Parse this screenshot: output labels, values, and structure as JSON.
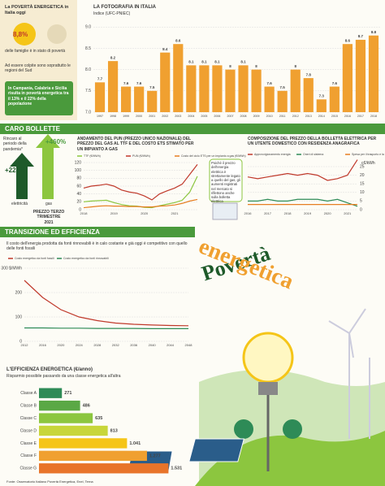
{
  "intro": {
    "title": "La POVERTÀ ENERGETICA in Italia oggi",
    "pct": "8,8%",
    "pct_text": "delle famiglie è in stato di povertà",
    "south": "Ad essere colpite sono soprattutto le regioni del Sud",
    "regions": "In Campania, Calabria e Sicilia risulta in povertà energetica tra il 13% e il 22% della popolazione"
  },
  "caro": {
    "title": "CARO BOLLETTE",
    "note": "Rincaro al periodo della pandemia*",
    "gas": "+460%",
    "elec": "+225%",
    "elec_label": "elettricità",
    "gas_label": "gas",
    "price": "PREZZO TERZO TRIMESTRE 2021",
    "bubble": "Poiché il prezzo dell'energia elettrica è strettamente legato a quello del gas, gli aumenti registrati nel mercato si riflettono anche sulla bolletta elettrica"
  },
  "transizione": {
    "title": "TRANSIZIONE ED EFFICIENZA",
    "text": "Il costo dell'energia prodotta da fonti rinnovabili è in calo costante e già oggi è competitivo con quello delle fonti fossili"
  },
  "headline": {
    "line1": "Povertà",
    "line2": "energetica"
  },
  "source": "Fonte: Osservatorio Italiano Povertà Energetica, Enel, Terna",
  "chart_data": [
    {
      "type": "bar",
      "title": "LA FOTOGRAFIA IN ITALIA",
      "subtitle": "Indice (UFC-PNIEC)",
      "categories": [
        "1997",
        "1998",
        "1999",
        "2000",
        "2001",
        "2002",
        "2003",
        "2004",
        "2005",
        "2006",
        "2007",
        "2008",
        "2009",
        "2010",
        "2011",
        "2012",
        "2013",
        "2014",
        "2015",
        "2016",
        "2017",
        "2018"
      ],
      "values": [
        7.7,
        8.2,
        7.6,
        7.6,
        7.5,
        8.4,
        8.6,
        8.1,
        8.1,
        8.1,
        8,
        8.1,
        8,
        7.6,
        7.5,
        8,
        7.8,
        7.3,
        7.6,
        8.6,
        8.7,
        8.8
      ],
      "color": "#f0a030",
      "ylim": [
        7,
        9.1
      ],
      "yticks": [
        {
          "value": 7,
          "label": "7.0"
        },
        7.5,
        {
          "value": 8,
          "label": "8.0"
        },
        8.5,
        {
          "value": 9,
          "label": "9.0"
        }
      ],
      "grid": true
    },
    {
      "type": "line",
      "title": "ANDAMENTO DEL PUN (PREZZO UNICO NAZIONALE) DEL PREZZO DEL GAS AL TTF E DEL COSTO ETS STIMATO PER UN IMPIANTO A GAS",
      "categories": [
        "2018",
        null,
        null,
        null,
        "2019",
        null,
        null,
        null,
        "2020",
        null,
        null,
        null,
        "2021",
        null,
        null,
        null
      ],
      "series": [
        {
          "name": "TTF (€/MWh)",
          "color": "#8cc63f",
          "values": [
            20,
            22,
            23,
            24,
            18,
            13,
            10,
            9,
            6,
            5,
            10,
            14,
            18,
            24,
            45,
            85
          ]
        },
        {
          "name": "PUN (€/MWh)",
          "color": "#c0392b",
          "values": [
            55,
            60,
            62,
            65,
            60,
            50,
            45,
            42,
            35,
            25,
            40,
            48,
            55,
            65,
            90,
            115
          ]
        },
        {
          "name": "Costo del ciclo ETS per un impianto a gas (€/MWh)",
          "color": "#e67e22",
          "values": [
            5,
            7,
            9,
            10,
            9,
            9,
            8,
            8,
            7,
            7,
            9,
            10,
            12,
            16,
            22,
            26
          ]
        }
      ],
      "ylim": [
        0,
        120
      ],
      "yticks": [
        0,
        20,
        40,
        60,
        80,
        100,
        120
      ],
      "grid": true
    },
    {
      "type": "line",
      "title": "COMPOSIZIONE DEL PREZZO DELLA BOLLETTA ELETTRICA PER UN UTENTE DOMESTICO CON RESIDENZA ANAGRAFICA",
      "unit": "c€/kWh",
      "categories": [
        "2016",
        null,
        "2017",
        null,
        "2018",
        null,
        "2019",
        null,
        "2020",
        null,
        "2021",
        null
      ],
      "series": [
        {
          "name": "Approvvigionamento energia",
          "color": "#c0392b",
          "values": [
            19,
            18,
            19,
            20,
            21,
            20,
            21,
            20,
            17,
            18,
            20,
            29
          ]
        },
        {
          "name": "Oneri di sistema",
          "color": "#2e8b57",
          "values": [
            5,
            5,
            6,
            5,
            5,
            6,
            6,
            6,
            5,
            6,
            4,
            2
          ]
        },
        {
          "name": "Spesa per il trasporto e la gestione del contatore",
          "color": "#e67e22",
          "values": [
            3,
            3,
            3,
            3,
            3,
            3,
            3,
            3,
            3,
            3,
            3,
            3
          ]
        }
      ],
      "ylim": [
        0,
        25
      ],
      "yticks": [
        0,
        5,
        10,
        15,
        20,
        25
      ],
      "grid": true
    },
    {
      "type": "line",
      "categories": [
        "2012",
        "2016",
        "2020",
        "2024",
        "2028",
        "2032",
        "2036",
        "2040",
        "2044",
        "2048"
      ],
      "series": [
        {
          "name": "Costo energetico da fonti fossili",
          "color": "#c0392b",
          "values": [
            250,
            180,
            130,
            100,
            85,
            75,
            70,
            67,
            65,
            64
          ]
        },
        {
          "name": "Costo energetico da fonti rinnovabili",
          "color": "#2e8b57",
          "values": [
            55,
            55,
            54,
            54,
            53,
            53,
            53,
            52,
            52,
            52
          ]
        }
      ],
      "ylim": [
        0,
        300
      ],
      "yticks": [
        0,
        100,
        200,
        {
          "value": 300,
          "label": "300 $/MWh"
        }
      ],
      "grid": true
    },
    {
      "type": "hbar",
      "title": "L'EFFICIENZA ENERGETICA (€/anno)",
      "subtitle": "Risparmio possibile passando da una classe energetica all'altra",
      "categories": [
        "Classe A",
        "Classe B",
        "Classe C",
        "Classe D",
        "Classe E",
        "Classe F",
        "Classe G"
      ],
      "values": [
        271,
        486,
        635,
        813,
        1041,
        1277,
        1531
      ],
      "value_labels": [
        "271",
        "486",
        "635",
        "813",
        "1.041",
        "1.277",
        "1.531"
      ],
      "colors": [
        "#2e8b57",
        "#5aa845",
        "#8cc63f",
        "#c8d63a",
        "#f5c518",
        "#f0a030",
        "#e8742a"
      ],
      "xlim": [
        0,
        1700
      ]
    }
  ]
}
